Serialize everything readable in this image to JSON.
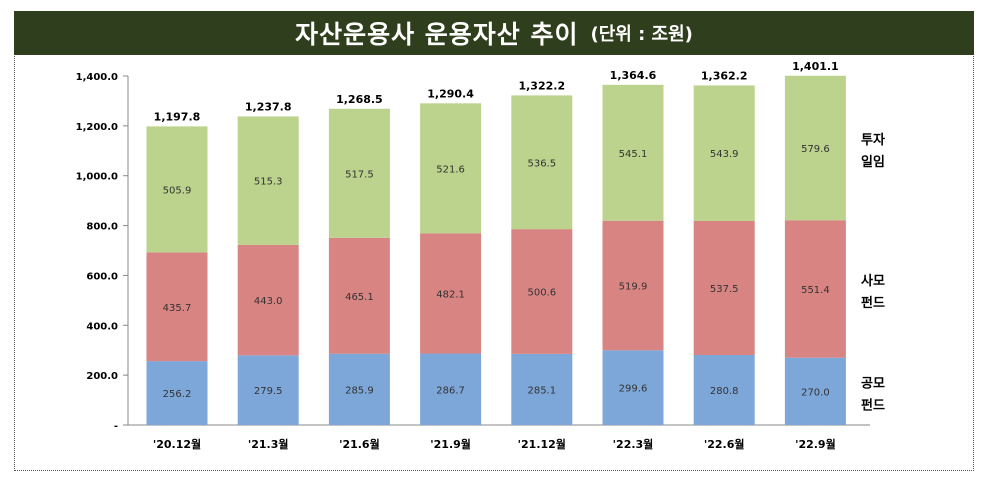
{
  "header": {
    "title": "자산운용사 운용자산 추이",
    "unit": "(단위 : 조원)"
  },
  "chart_data": {
    "type": "bar",
    "stacked": true,
    "categories": [
      "'20.12월",
      "'21.3월",
      "'21.6월",
      "'21.9월",
      "'21.12월",
      "'22.3월",
      "'22.6월",
      "'22.9월"
    ],
    "series": [
      {
        "name": "공모 펀드",
        "lines": [
          "공모",
          "펀드"
        ],
        "color": "#7da7d9",
        "values": [
          256.2,
          279.5,
          285.9,
          286.7,
          285.1,
          299.6,
          280.8,
          270.0
        ]
      },
      {
        "name": "사모 펀드",
        "lines": [
          "사모",
          "펀드"
        ],
        "color": "#d88483",
        "values": [
          435.7,
          443.0,
          465.1,
          482.1,
          500.6,
          519.9,
          537.5,
          551.4
        ]
      },
      {
        "name": "투자 일임",
        "lines": [
          "투자",
          "일임"
        ],
        "color": "#bcd38d",
        "values": [
          505.9,
          515.3,
          517.5,
          521.6,
          536.5,
          545.1,
          543.9,
          579.6
        ]
      }
    ],
    "totals": [
      "1,197.8",
      "1,237.8",
      "1,268.5",
      "1,290.4",
      "1,322.2",
      "1,364.6",
      "1,362.2",
      "1,401.1"
    ],
    "yticks": [
      "-",
      "200.0",
      "400.0",
      "600.0",
      "800.0",
      "1,000.0",
      "1,200.0",
      "1,400.0"
    ],
    "ylim": [
      0,
      1400
    ],
    "grid": false,
    "legend": "right (labels beside last bar)"
  }
}
